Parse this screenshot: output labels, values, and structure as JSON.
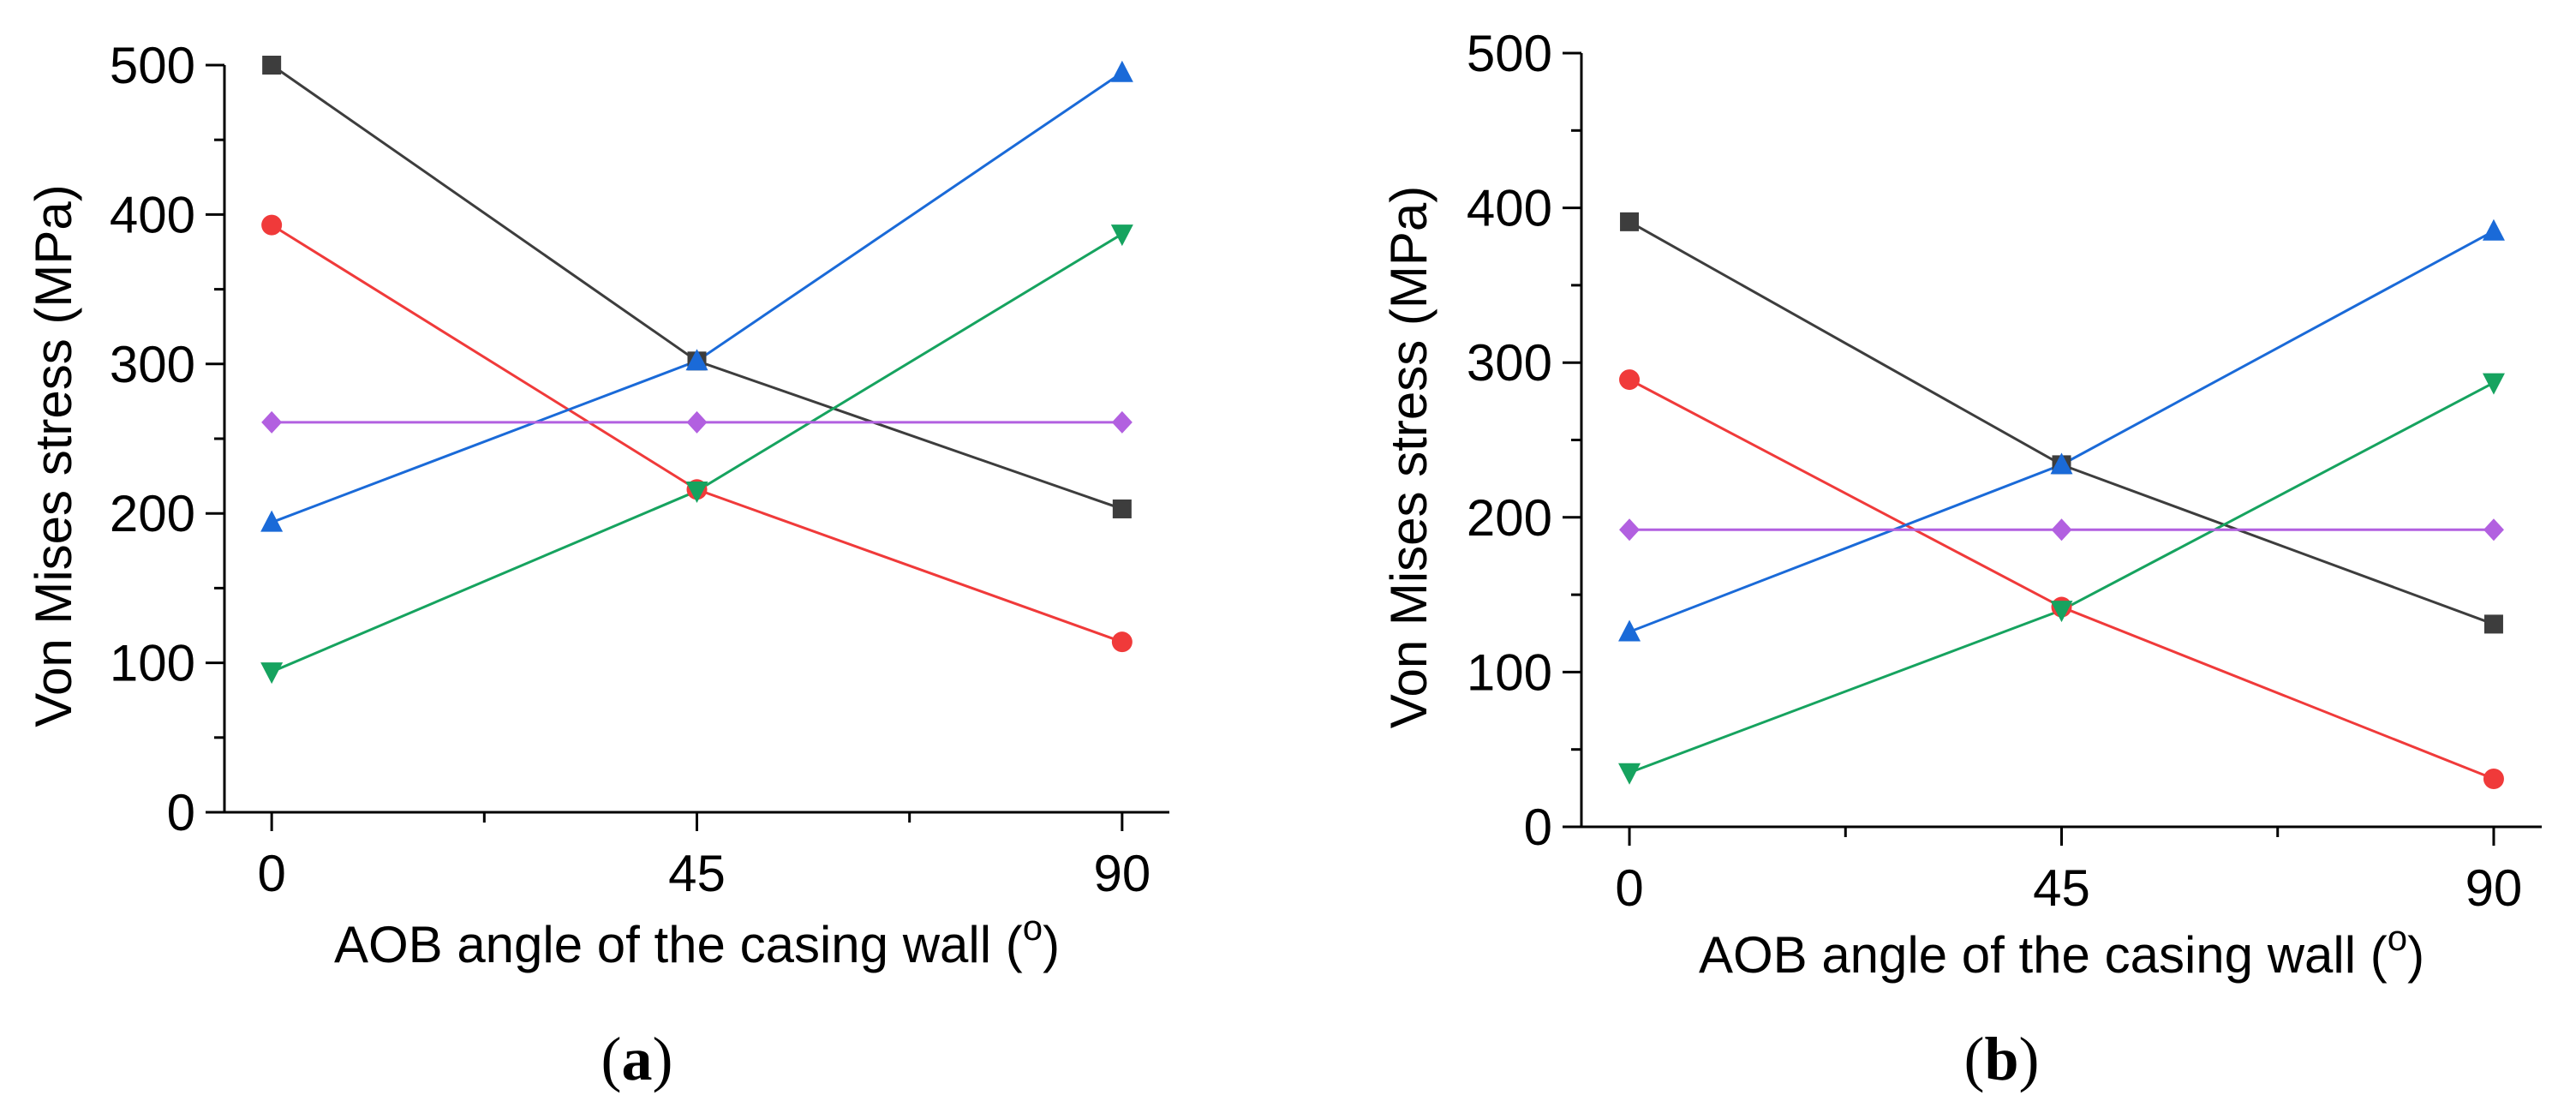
{
  "chart_data": [
    {
      "type": "line",
      "panel_label": "(a)",
      "panel_letter": "a",
      "xlabel": "AOB angle of the casing wall (",
      "xlabel_sup": "o",
      "xlabel_close": ")",
      "ylabel": "Von Mises stress (MPa)",
      "x": [
        0,
        45,
        90
      ],
      "xticks": [
        0,
        45,
        90
      ],
      "xlim": [
        -5,
        95
      ],
      "ylim": [
        0,
        500
      ],
      "yticks": [
        0,
        100,
        200,
        300,
        400,
        500
      ],
      "series": [
        {
          "name": "series-1",
          "color": "#3d3d3d",
          "marker": "square",
          "values": [
            500,
            302,
            203
          ]
        },
        {
          "name": "series-2",
          "color": "#f03a3a",
          "marker": "circle",
          "values": [
            393,
            216,
            114
          ]
        },
        {
          "name": "series-3",
          "color": "#1a6ad8",
          "marker": "triangle-up",
          "values": [
            194,
            302,
            495
          ]
        },
        {
          "name": "series-4",
          "color": "#16a35f",
          "marker": "triangle-down",
          "values": [
            94,
            215,
            387
          ]
        },
        {
          "name": "series-5",
          "color": "#b260e0",
          "marker": "diamond",
          "values": [
            261,
            261,
            261
          ]
        }
      ]
    },
    {
      "type": "line",
      "panel_label": "(b)",
      "panel_letter": "b",
      "xlabel": "AOB angle of the casing wall (",
      "xlabel_sup": "o",
      "xlabel_close": ")",
      "ylabel": "Von Mises stress (MPa)",
      "x": [
        0,
        45,
        90
      ],
      "xticks": [
        0,
        45,
        90
      ],
      "xlim": [
        -5,
        95
      ],
      "ylim": [
        0,
        500
      ],
      "yticks": [
        0,
        100,
        200,
        300,
        400,
        500
      ],
      "series": [
        {
          "name": "series-1",
          "color": "#3d3d3d",
          "marker": "square",
          "values": [
            391,
            234,
            131
          ]
        },
        {
          "name": "series-2",
          "color": "#f03a3a",
          "marker": "circle",
          "values": [
            289,
            142,
            31
          ]
        },
        {
          "name": "series-3",
          "color": "#1a6ad8",
          "marker": "triangle-up",
          "values": [
            126,
            234,
            385
          ]
        },
        {
          "name": "series-4",
          "color": "#16a35f",
          "marker": "triangle-down",
          "values": [
            35,
            140,
            287
          ]
        },
        {
          "name": "series-5",
          "color": "#b260e0",
          "marker": "diamond",
          "values": [
            192,
            192,
            192
          ]
        }
      ]
    }
  ]
}
